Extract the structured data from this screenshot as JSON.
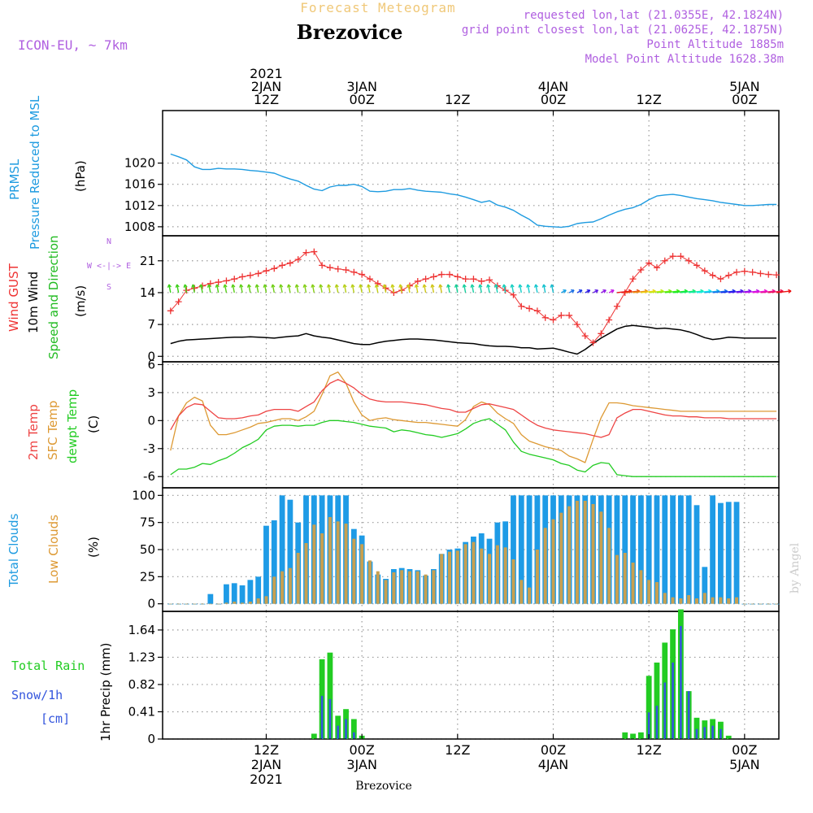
{
  "header": {
    "banner": "Forecast Meteogram",
    "location": "Brezovice",
    "model": "ICON-EU, ~ 7km",
    "requested": "requested lon,lat (21.0355E, 42.1824N)",
    "gridpoint": "grid point closest lon,lat (21.0625E, 42.1875N)",
    "point_alt": "Point Altitude 1885m",
    "model_alt": "Model Point Altitude 1628.38m"
  },
  "footer": {
    "location": "Brezovice",
    "credit": "by Angel"
  },
  "colors": {
    "pressure": "#1e9be0",
    "gust": "#ee3333",
    "wind": "#000000",
    "windlabel": "#22bb22",
    "temp2m": "#ee4444",
    "sfctemp": "#dd9933",
    "dewpt": "#22cc22",
    "totalcloud": "#1e9be6",
    "lowcloud": "#c8a050",
    "rain": "#22cc22",
    "snow": "#3355dd",
    "header_purple": "#b060e0",
    "banner": "#f0c878"
  },
  "time_axis": {
    "top_ticks": [
      {
        "t": 12,
        "lines": [
          "2021",
          "2JAN",
          "12Z"
        ]
      },
      {
        "t": 24,
        "lines": [
          "3JAN",
          "00Z"
        ]
      },
      {
        "t": 36,
        "lines": [
          "12Z"
        ]
      },
      {
        "t": 48,
        "lines": [
          "4JAN",
          "00Z"
        ]
      },
      {
        "t": 60,
        "lines": [
          "12Z"
        ]
      },
      {
        "t": 72,
        "lines": [
          "5JAN",
          "00Z"
        ]
      }
    ],
    "bottom_ticks": [
      {
        "t": 12,
        "lines": [
          "12Z",
          "2JAN",
          "2021"
        ]
      },
      {
        "t": 24,
        "lines": [
          "00Z",
          "3JAN"
        ]
      },
      {
        "t": 36,
        "lines": [
          "12Z"
        ]
      },
      {
        "t": 48,
        "lines": [
          "00Z",
          "4JAN"
        ]
      },
      {
        "t": 60,
        "lines": [
          "12Z"
        ]
      },
      {
        "t": 72,
        "lines": [
          "00Z",
          "5JAN"
        ]
      }
    ]
  },
  "chart_data": [
    {
      "type": "line",
      "panel": "pressure",
      "labels": [
        "PRMSL",
        "Pressure Reduced to MSL"
      ],
      "ylabel": "(hPa)",
      "ylim": [
        1006.3,
        1029.9
      ],
      "yticks": [
        1008,
        1012,
        1016,
        1020
      ],
      "x": [
        0,
        1,
        2,
        3,
        4,
        5,
        6,
        7,
        8,
        9,
        10,
        11,
        12,
        13,
        14,
        15,
        16,
        17,
        18,
        19,
        20,
        21,
        22,
        23,
        24,
        25,
        26,
        27,
        28,
        29,
        30,
        31,
        32,
        33,
        34,
        35,
        36,
        37,
        38,
        39,
        40,
        41,
        42,
        43,
        44,
        45,
        46,
        47,
        48,
        49,
        50,
        51,
        52,
        53,
        54,
        55,
        56,
        57,
        58,
        59,
        60,
        61,
        62,
        63,
        64,
        65,
        66,
        67,
        68,
        69,
        70,
        71,
        72,
        73,
        74,
        75,
        76
      ],
      "values": [
        1021.7,
        1021.2,
        1020.6,
        1019.3,
        1018.8,
        1018.8,
        1019.0,
        1018.9,
        1018.9,
        1018.8,
        1018.6,
        1018.5,
        1018.3,
        1018.1,
        1017.5,
        1017.0,
        1016.6,
        1015.8,
        1015.1,
        1014.8,
        1015.5,
        1015.8,
        1015.8,
        1016.0,
        1015.6,
        1014.7,
        1014.6,
        1014.7,
        1015.0,
        1015.0,
        1015.2,
        1014.9,
        1014.7,
        1014.6,
        1014.5,
        1014.2,
        1014.0,
        1013.6,
        1013.1,
        1012.6,
        1012.9,
        1012.1,
        1011.7,
        1011.1,
        1010.2,
        1009.4,
        1008.3,
        1008.1,
        1008.0,
        1007.9,
        1008.1,
        1008.6,
        1008.8,
        1008.9,
        1009.5,
        1010.2,
        1010.8,
        1011.3,
        1011.6,
        1012.2,
        1013.1,
        1013.8,
        1014.0,
        1014.1,
        1013.9,
        1013.6,
        1013.3,
        1013.1,
        1012.9,
        1012.6,
        1012.4,
        1012.2,
        1012.0,
        1012.0,
        1012.1,
        1012.2,
        1012.2
      ]
    },
    {
      "type": "line",
      "panel": "wind",
      "labels": [
        "Wind GUST",
        "10m Wind",
        "Speed and Direction"
      ],
      "ylabel": "(m/s)",
      "compass": [
        "N",
        "W <-|-> E",
        "S"
      ],
      "ylim": [
        -1.2,
        26.5
      ],
      "yticks": [
        0,
        7,
        14,
        21
      ],
      "x": [
        0,
        1,
        2,
        3,
        4,
        5,
        6,
        7,
        8,
        9,
        10,
        11,
        12,
        13,
        14,
        15,
        16,
        17,
        18,
        19,
        20,
        21,
        22,
        23,
        24,
        25,
        26,
        27,
        28,
        29,
        30,
        31,
        32,
        33,
        34,
        35,
        36,
        37,
        38,
        39,
        40,
        41,
        42,
        43,
        44,
        45,
        46,
        47,
        48,
        49,
        50,
        51,
        52,
        53,
        54,
        55,
        56,
        57,
        58,
        59,
        60,
        61,
        62,
        63,
        64,
        65,
        66,
        67,
        68,
        69,
        70,
        71,
        72,
        73,
        74,
        75,
        76
      ],
      "series": [
        {
          "name": "Wind GUST",
          "style": "cross",
          "values": [
            10,
            12,
            14.5,
            15,
            15.5,
            16,
            16.3,
            16.6,
            17,
            17.5,
            17.8,
            18.2,
            18.8,
            19.3,
            20,
            20.5,
            21.3,
            22.8,
            23,
            20,
            19.5,
            19.2,
            19,
            18.5,
            18,
            17,
            16,
            15,
            14,
            14.5,
            15.5,
            16.5,
            17,
            17.5,
            18,
            18,
            17.5,
            17,
            17,
            16.5,
            16.8,
            15.5,
            14.5,
            13.5,
            11,
            10.5,
            10,
            8.5,
            8,
            9,
            9,
            7,
            4.5,
            3,
            5,
            8,
            11,
            14,
            17,
            19,
            20.5,
            19.5,
            21,
            22,
            22,
            21,
            20,
            18.8,
            17.8,
            17,
            17.8,
            18.5,
            18.7,
            18.5,
            18.2,
            18,
            17.9
          ]
        },
        {
          "name": "10m Wind",
          "style": "line",
          "values": [
            2.8,
            3.3,
            3.6,
            3.7,
            3.8,
            3.9,
            4.0,
            4.1,
            4.2,
            4.2,
            4.3,
            4.2,
            4.1,
            4.0,
            4.2,
            4.4,
            4.5,
            5.0,
            4.5,
            4.2,
            4.0,
            3.6,
            3.2,
            2.8,
            2.6,
            2.6,
            3.0,
            3.3,
            3.5,
            3.7,
            3.8,
            3.8,
            3.7,
            3.6,
            3.4,
            3.2,
            3.0,
            2.9,
            2.8,
            2.5,
            2.3,
            2.2,
            2.2,
            2.1,
            1.9,
            1.9,
            1.6,
            1.7,
            1.8,
            1.4,
            0.9,
            0.5,
            1.5,
            2.8,
            4.0,
            5.0,
            6.0,
            6.6,
            6.8,
            6.6,
            6.4,
            6.1,
            6.2,
            6.0,
            5.8,
            5.4,
            4.8,
            4.1,
            3.7,
            3.9,
            4.2,
            4.1,
            4.0,
            4.0,
            4.0,
            4.0,
            4.0
          ]
        }
      ]
    },
    {
      "type": "line",
      "panel": "temperature",
      "labels": [
        "2m Temp",
        "SFC Temp",
        "dewpt Temp"
      ],
      "ylabel": "(C)",
      "ylim": [
        -7.2,
        6.3
      ],
      "yticks": [
        -6,
        -3,
        0,
        3,
        6
      ],
      "x": [
        0,
        1,
        2,
        3,
        4,
        5,
        6,
        7,
        8,
        9,
        10,
        11,
        12,
        13,
        14,
        15,
        16,
        17,
        18,
        19,
        20,
        21,
        22,
        23,
        24,
        25,
        26,
        27,
        28,
        29,
        30,
        31,
        32,
        33,
        34,
        35,
        36,
        37,
        38,
        39,
        40,
        41,
        42,
        43,
        44,
        45,
        46,
        47,
        48,
        49,
        50,
        51,
        52,
        53,
        54,
        55,
        56,
        57,
        58,
        59,
        60,
        61,
        62,
        63,
        64,
        65,
        66,
        67,
        68,
        69,
        70,
        71,
        72,
        73,
        74,
        75,
        76
      ],
      "series": [
        {
          "name": "2m Temp",
          "values": [
            -1.0,
            0.5,
            1.4,
            1.8,
            1.7,
            1.0,
            0.3,
            0.2,
            0.2,
            0.3,
            0.5,
            0.6,
            1.0,
            1.2,
            1.2,
            1.2,
            1.0,
            1.5,
            2.0,
            3.2,
            4.0,
            4.4,
            4.0,
            3.5,
            2.8,
            2.3,
            2.1,
            2.0,
            2.0,
            2.0,
            1.9,
            1.8,
            1.7,
            1.5,
            1.3,
            1.2,
            0.9,
            0.9,
            1.3,
            1.7,
            1.8,
            1.6,
            1.4,
            1.2,
            0.6,
            0.0,
            -0.5,
            -0.8,
            -1.0,
            -1.1,
            -1.2,
            -1.3,
            -1.4,
            -1.6,
            -1.8,
            -1.5,
            0.3,
            0.8,
            1.2,
            1.2,
            1.0,
            0.8,
            0.6,
            0.5,
            0.5,
            0.4,
            0.4,
            0.3,
            0.3,
            0.3,
            0.2,
            0.2,
            0.2,
            0.2,
            0.2,
            0.2,
            0.2
          ]
        },
        {
          "name": "SFC Temp",
          "values": [
            -3.2,
            0.5,
            1.9,
            2.5,
            2.1,
            -0.5,
            -1.5,
            -1.5,
            -1.3,
            -1.0,
            -0.7,
            -0.3,
            -0.2,
            0.0,
            0.2,
            0.2,
            0.0,
            0.4,
            1.0,
            2.8,
            4.8,
            5.2,
            4.0,
            2.0,
            0.6,
            0.0,
            0.2,
            0.3,
            0.1,
            0.0,
            -0.1,
            -0.2,
            -0.2,
            -0.3,
            -0.4,
            -0.5,
            -0.6,
            0.1,
            1.5,
            2.0,
            1.7,
            0.8,
            0.2,
            -0.3,
            -1.5,
            -2.2,
            -2.5,
            -2.8,
            -3.0,
            -3.2,
            -3.8,
            -4.1,
            -4.5,
            -2.0,
            0.3,
            1.9,
            1.9,
            1.8,
            1.6,
            1.5,
            1.4,
            1.3,
            1.2,
            1.1,
            1.0,
            1.0,
            1.0,
            1.0,
            1.0,
            1.0,
            1.0,
            1.0,
            1.0,
            1.0,
            1.0,
            1.0,
            1.0
          ]
        },
        {
          "name": "dewpt Temp",
          "values": [
            -5.8,
            -5.2,
            -5.2,
            -5.0,
            -4.6,
            -4.7,
            -4.3,
            -4.0,
            -3.5,
            -2.9,
            -2.5,
            -2.0,
            -1.0,
            -0.6,
            -0.5,
            -0.5,
            -0.6,
            -0.5,
            -0.5,
            -0.2,
            0.0,
            0.0,
            -0.1,
            -0.2,
            -0.4,
            -0.6,
            -0.7,
            -0.8,
            -1.2,
            -1.0,
            -1.1,
            -1.3,
            -1.5,
            -1.6,
            -1.8,
            -1.6,
            -1.4,
            -0.9,
            -0.3,
            0.0,
            0.2,
            -0.4,
            -1.0,
            -2.3,
            -3.3,
            -3.6,
            -3.8,
            -4.0,
            -4.2,
            -4.6,
            -4.8,
            -5.3,
            -5.5,
            -4.8,
            -4.5,
            -4.6,
            -5.8,
            -5.9,
            -6.0,
            -6.0,
            -6.0,
            -6.0,
            -6.0,
            -6.0,
            -6.0,
            -6.0,
            -6.0,
            -6.0,
            -6.0,
            -6.0,
            -6.0,
            -6.0,
            -6.0,
            -6.0,
            -6.0,
            -6.0,
            -6.0
          ]
        }
      ]
    },
    {
      "type": "bar",
      "panel": "clouds",
      "labels": [
        "Total Clouds",
        "Low Clouds"
      ],
      "ylabel": "(%)",
      "ylim": [
        -7,
        107
      ],
      "yticks": [
        0,
        25,
        50,
        75,
        100
      ],
      "x": [
        0,
        1,
        2,
        3,
        4,
        5,
        6,
        7,
        8,
        9,
        10,
        11,
        12,
        13,
        14,
        15,
        16,
        17,
        18,
        19,
        20,
        21,
        22,
        23,
        24,
        25,
        26,
        27,
        28,
        29,
        30,
        31,
        32,
        33,
        34,
        35,
        36,
        37,
        38,
        39,
        40,
        41,
        42,
        43,
        44,
        45,
        46,
        47,
        48,
        49,
        50,
        51,
        52,
        53,
        54,
        55,
        56,
        57,
        58,
        59,
        60,
        61,
        62,
        63,
        64,
        65,
        66,
        67,
        68,
        69,
        70,
        71,
        72,
        73,
        74,
        75,
        76
      ],
      "series": [
        {
          "name": "Total Clouds",
          "values": [
            0,
            0,
            0,
            0,
            0,
            9,
            0,
            18,
            19,
            17,
            22,
            25,
            72,
            77,
            100,
            96,
            75,
            100,
            100,
            100,
            100,
            100,
            100,
            69,
            63,
            39,
            27,
            23,
            32,
            33,
            32,
            31,
            26,
            32,
            46,
            50,
            51,
            57,
            62,
            65,
            60,
            75,
            76,
            100,
            100,
            100,
            100,
            100,
            100,
            100,
            100,
            100,
            100,
            100,
            100,
            100,
            100,
            100,
            100,
            100,
            100,
            100,
            100,
            100,
            100,
            100,
            91,
            34,
            100,
            93,
            94,
            94,
            0,
            0,
            0,
            0,
            0
          ]
        },
        {
          "name": "Low Clouds",
          "values": [
            0,
            0,
            0,
            0,
            0,
            0,
            0,
            1,
            2,
            1,
            2,
            5,
            7,
            25,
            30,
            33,
            47,
            56,
            73,
            65,
            80,
            76,
            74,
            60,
            55,
            40,
            30,
            22,
            29,
            31,
            30,
            30,
            27,
            31,
            46,
            48,
            49,
            55,
            57,
            51,
            46,
            54,
            52,
            41,
            22,
            15,
            50,
            70,
            78,
            84,
            90,
            95,
            95,
            92,
            85,
            70,
            45,
            47,
            38,
            31,
            22,
            20,
            10,
            6,
            5,
            8,
            5,
            10,
            6,
            6,
            5,
            6,
            0,
            0,
            0,
            0,
            0
          ]
        }
      ]
    },
    {
      "type": "bar",
      "panel": "precip",
      "labels": [
        "Total Rain",
        "Snow/1h",
        "[cm]"
      ],
      "ylabel": "1hr Precip (mm)",
      "ylim": [
        0,
        1.92
      ],
      "yticks": [
        0,
        0.41,
        0.82,
        1.23,
        1.64
      ],
      "x": [
        18,
        19,
        20,
        21,
        22,
        23,
        24,
        57,
        58,
        59,
        60,
        61,
        62,
        63,
        64,
        65,
        66,
        67,
        68,
        69,
        70
      ],
      "series": [
        {
          "name": "Total Rain",
          "values": [
            0.08,
            1.2,
            1.3,
            0.35,
            0.45,
            0.3,
            0.05,
            0.1,
            0.08,
            0.1,
            0.95,
            1.15,
            1.45,
            1.65,
            1.95,
            0.72,
            0.32,
            0.28,
            0.3,
            0.26,
            0.05
          ]
        },
        {
          "name": "Snow/1h",
          "values": [
            0,
            0.65,
            0.6,
            0.2,
            0.3,
            0.1,
            0,
            0,
            0,
            0,
            0.4,
            0.5,
            0.85,
            1.15,
            1.7,
            0.72,
            0.15,
            0.18,
            0.2,
            0.15,
            0
          ]
        }
      ]
    }
  ]
}
